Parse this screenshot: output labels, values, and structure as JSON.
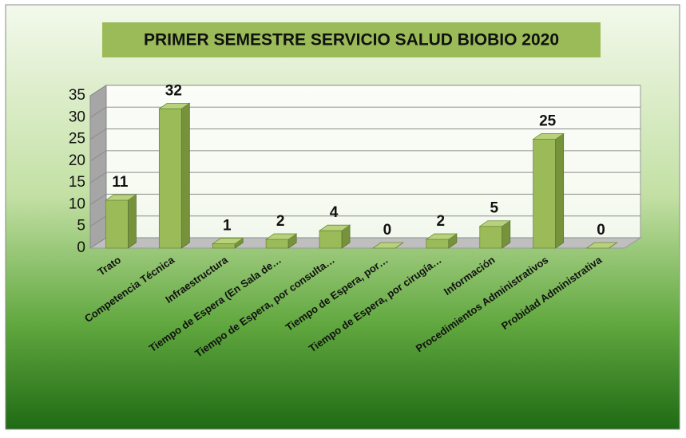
{
  "chart_data": {
    "type": "bar",
    "title": "PRIMER SEMESTRE SERVICIO SALUD BIOBIO 2020",
    "categories": [
      "Trato",
      "Competencia Técnica",
      "Infraestructura",
      "Tiempo de Espera (En Sala de…",
      "Tiempo de Espera, por consulta…",
      "Tiempo de Espera, por…",
      "Tiempo de Espera, por cirugía…",
      "Información",
      "Procedimientos Administrativos",
      "Probidad Administrativa"
    ],
    "values": [
      11,
      32,
      1,
      2,
      4,
      0,
      2,
      5,
      25,
      0
    ],
    "color": "#9bbb59",
    "ylim": [
      0,
      35
    ],
    "yticks": [
      0,
      5,
      10,
      15,
      20,
      25,
      30,
      35
    ],
    "grid": true
  }
}
